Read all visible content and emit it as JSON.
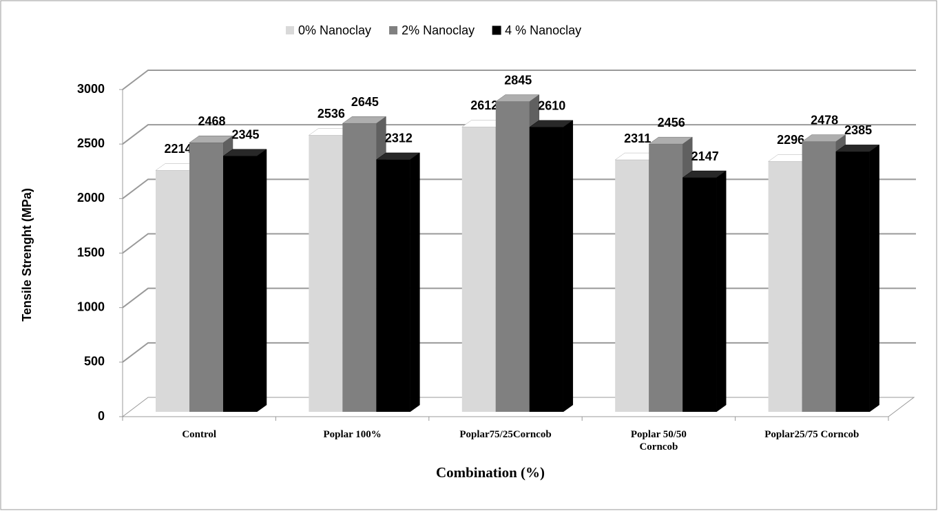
{
  "chart_data": {
    "type": "bar3d",
    "x_label": "Combination (%)",
    "y_label": "Tensile Strenght (MPa)",
    "categories": [
      "Control",
      "Poplar 100%",
      "Poplar75/25Corncob",
      "Poplar 50/50\nCorncob",
      "Poplar25/75 Corncob"
    ],
    "series": [
      {
        "name": "0% Nanoclay",
        "color": "#d9d9d9",
        "values": [
          2214,
          2536,
          2612,
          2311,
          2296
        ]
      },
      {
        "name": "2% Nanoclay",
        "color": "#808080",
        "values": [
          2468,
          2645,
          2845,
          2456,
          2478
        ]
      },
      {
        "name": "4 % Nanoclay",
        "color": "#000000",
        "values": [
          2345,
          2312,
          2610,
          2147,
          2385
        ]
      }
    ],
    "ylim": [
      0,
      3000
    ],
    "yticks": [
      0,
      500,
      1000,
      1500,
      2000,
      2500,
      3000
    ],
    "grid": true,
    "legend": "top"
  }
}
